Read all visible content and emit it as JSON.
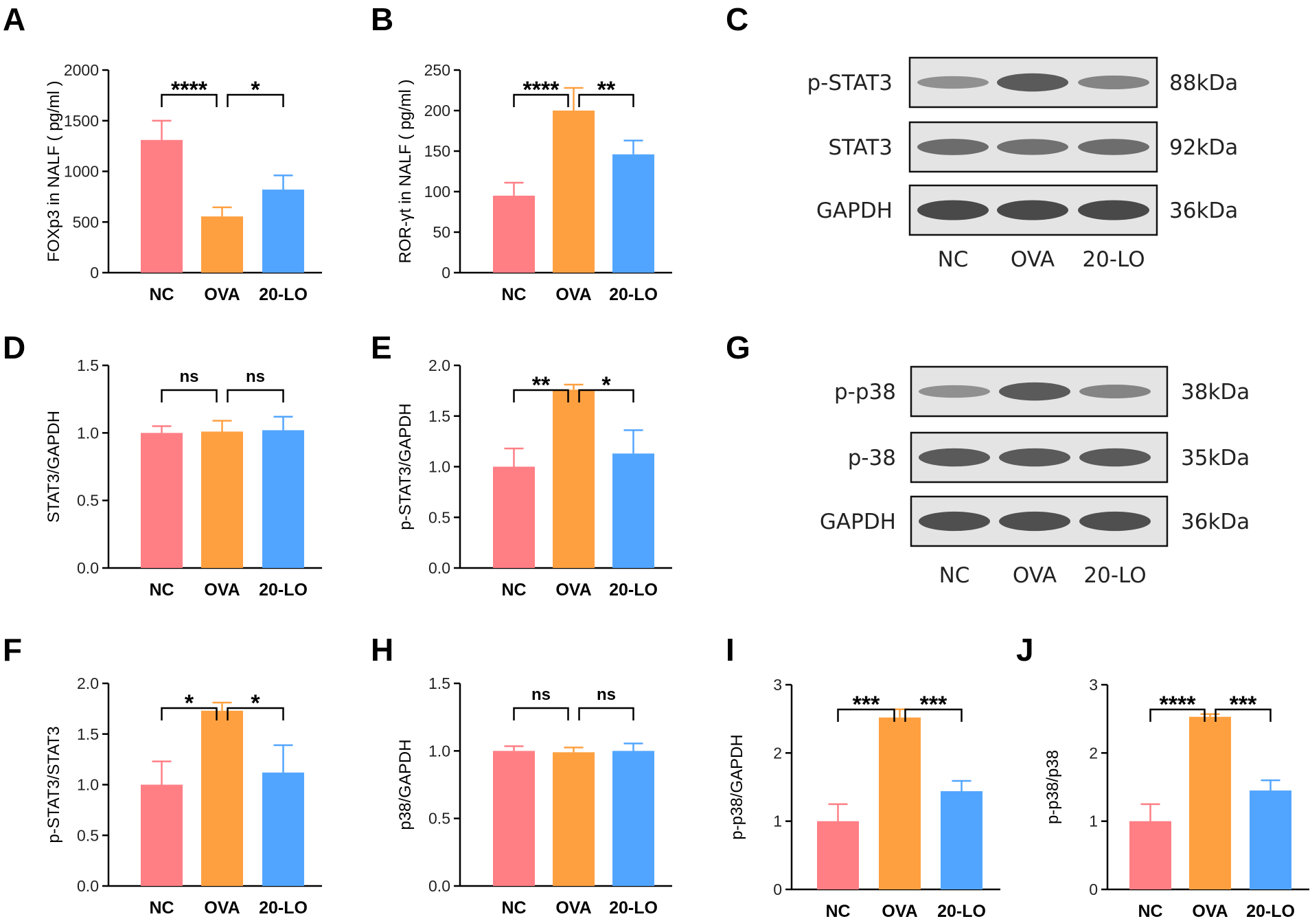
{
  "colors": {
    "nc": "#FF7F85",
    "ova": "#FFA040",
    "lo": "#52A5FF",
    "axis": "#000000",
    "blot_bg": "#e4e4e4",
    "band": "#3a3a3a"
  },
  "panel_letters": {
    "A": "A",
    "B": "B",
    "C": "C",
    "D": "D",
    "E": "E",
    "F": "F",
    "G": "G",
    "H": "H",
    "I": "I",
    "J": "J"
  },
  "chart_data": [
    {
      "id": "A",
      "type": "bar",
      "categories": [
        "NC",
        "OVA",
        "20-LO"
      ],
      "values": [
        1310,
        555,
        820
      ],
      "errors": [
        190,
        90,
        140
      ],
      "ylabel": "FOXp3 in NALF ( pg/ml )",
      "ylim": [
        0,
        2000
      ],
      "yticks": [
        "0",
        "500",
        "1000",
        "1500",
        "2000"
      ],
      "tick_values": [
        0,
        500,
        1000,
        1500,
        2000
      ],
      "sig": [
        {
          "from": 0,
          "to": 1,
          "label": "****"
        },
        {
          "from": 1,
          "to": 2,
          "label": "*"
        }
      ]
    },
    {
      "id": "B",
      "type": "bar",
      "categories": [
        "NC",
        "OVA",
        "20-LO"
      ],
      "values": [
        95,
        200,
        146
      ],
      "errors": [
        16,
        28,
        17
      ],
      "ylabel": "ROR-γt in NALF ( pg/ml )",
      "ylim": [
        0,
        250
      ],
      "yticks": [
        "0",
        "50",
        "100",
        "150",
        "200",
        "250"
      ],
      "tick_values": [
        0,
        50,
        100,
        150,
        200,
        250
      ],
      "sig": [
        {
          "from": 0,
          "to": 1,
          "label": "****"
        },
        {
          "from": 1,
          "to": 2,
          "label": "**"
        }
      ]
    },
    {
      "id": "D",
      "type": "bar",
      "categories": [
        "NC",
        "OVA",
        "20-LO"
      ],
      "values": [
        1.0,
        1.01,
        1.02
      ],
      "errors": [
        0.05,
        0.08,
        0.1
      ],
      "ylabel": "STAT3/GAPDH",
      "ylim": [
        0,
        1.5
      ],
      "yticks": [
        "0.0",
        "0.5",
        "1.0",
        "1.5"
      ],
      "tick_values": [
        0,
        0.5,
        1.0,
        1.5
      ],
      "sig": [
        {
          "from": 0,
          "to": 1,
          "label": "ns"
        },
        {
          "from": 1,
          "to": 2,
          "label": "ns"
        }
      ]
    },
    {
      "id": "E",
      "type": "bar",
      "categories": [
        "NC",
        "OVA",
        "20-LO"
      ],
      "values": [
        1.0,
        1.76,
        1.13
      ],
      "errors": [
        0.18,
        0.05,
        0.23
      ],
      "ylabel": "p-STAT3/GAPDH",
      "ylim": [
        0,
        2.0
      ],
      "yticks": [
        "0.0",
        "0.5",
        "1.0",
        "1.5",
        "2.0"
      ],
      "tick_values": [
        0,
        0.5,
        1.0,
        1.5,
        2.0
      ],
      "sig": [
        {
          "from": 0,
          "to": 1,
          "label": "**"
        },
        {
          "from": 1,
          "to": 2,
          "label": "*"
        }
      ]
    },
    {
      "id": "F",
      "type": "bar",
      "categories": [
        "NC",
        "OVA",
        "20-LO"
      ],
      "values": [
        1.0,
        1.73,
        1.12
      ],
      "errors": [
        0.23,
        0.08,
        0.27
      ],
      "ylabel": "p-STAT3/STAT3",
      "ylim": [
        0,
        2.0
      ],
      "yticks": [
        "0.0",
        "0.5",
        "1.0",
        "1.5",
        "2.0"
      ],
      "tick_values": [
        0,
        0.5,
        1.0,
        1.5,
        2.0
      ],
      "sig": [
        {
          "from": 0,
          "to": 1,
          "label": "*"
        },
        {
          "from": 1,
          "to": 2,
          "label": "*"
        }
      ]
    },
    {
      "id": "H",
      "type": "bar",
      "categories": [
        "NC",
        "OVA",
        "20-LO"
      ],
      "values": [
        1.0,
        0.99,
        1.0
      ],
      "errors": [
        0.035,
        0.035,
        0.055
      ],
      "ylabel": "p38/GAPDH",
      "ylim": [
        0,
        1.5
      ],
      "yticks": [
        "0.0",
        "0.5",
        "1.0",
        "1.5"
      ],
      "tick_values": [
        0,
        0.5,
        1.0,
        1.5
      ],
      "sig": [
        {
          "from": 0,
          "to": 1,
          "label": "ns"
        },
        {
          "from": 1,
          "to": 2,
          "label": "ns"
        }
      ]
    },
    {
      "id": "I",
      "type": "bar",
      "categories": [
        "NC",
        "OVA",
        "20-LO"
      ],
      "values": [
        1.0,
        2.52,
        1.44
      ],
      "errors": [
        0.25,
        0.12,
        0.15
      ],
      "ylabel": "p-p38/GAPDH",
      "ylim": [
        0,
        3
      ],
      "yticks": [
        "0",
        "1",
        "2",
        "3"
      ],
      "tick_values": [
        0,
        1,
        2,
        3
      ],
      "sig": [
        {
          "from": 0,
          "to": 1,
          "label": "***"
        },
        {
          "from": 1,
          "to": 2,
          "label": "***"
        }
      ]
    },
    {
      "id": "J",
      "type": "bar",
      "categories": [
        "NC",
        "OVA",
        "20-LO"
      ],
      "values": [
        1.0,
        2.53,
        1.45
      ],
      "errors": [
        0.25,
        0.04,
        0.15
      ],
      "ylabel": "p-p38/p38",
      "ylim": [
        0,
        3
      ],
      "yticks": [
        "0",
        "1",
        "2",
        "3"
      ],
      "tick_values": [
        0,
        1,
        2,
        3
      ],
      "sig": [
        {
          "from": 0,
          "to": 1,
          "label": "****"
        },
        {
          "from": 1,
          "to": 2,
          "label": "***"
        }
      ]
    }
  ],
  "blots": [
    {
      "id": "C",
      "lanes": [
        "NC",
        "OVA",
        "20-LO"
      ],
      "rows": [
        {
          "protein": "p-STAT3",
          "weight": "88kDa",
          "intensity": [
            0.35,
            0.8,
            0.45
          ]
        },
        {
          "protein": "STAT3",
          "weight": "92kDa",
          "intensity": [
            0.65,
            0.62,
            0.64
          ]
        },
        {
          "protein": "GAPDH",
          "weight": "36kDa",
          "intensity": [
            0.95,
            0.95,
            0.95
          ]
        }
      ]
    },
    {
      "id": "G",
      "lanes": [
        "NC",
        "OVA",
        "20-LO"
      ],
      "rows": [
        {
          "protein": "p-p38",
          "weight": "38kDa",
          "intensity": [
            0.35,
            0.8,
            0.45
          ]
        },
        {
          "protein": "p-38",
          "weight": "35kDa",
          "intensity": [
            0.8,
            0.8,
            0.8
          ]
        },
        {
          "protein": "GAPDH",
          "weight": "36kDa",
          "intensity": [
            0.9,
            0.9,
            0.9
          ]
        }
      ]
    }
  ]
}
